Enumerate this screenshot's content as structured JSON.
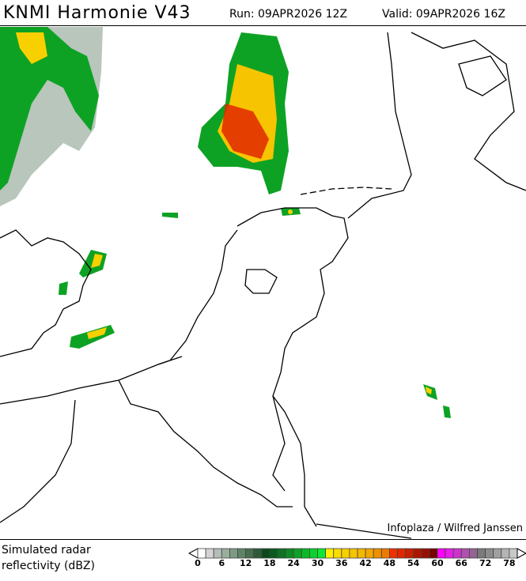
{
  "header": {
    "title": "KNMI Harmonie V43",
    "run": "Run: 09APR2026 12Z",
    "valid": "Valid: 09APR2026 16Z"
  },
  "map": {
    "credit": "Infoplaza / Wilfred Janssen"
  },
  "legend": {
    "label_line1": "Simulated radar",
    "label_line2": "reflectivity (dBZ)",
    "ticks": [
      "0",
      "6",
      "12",
      "18",
      "24",
      "30",
      "36",
      "42",
      "48",
      "54",
      "60",
      "66",
      "72",
      "78"
    ],
    "colors": [
      "#ffffff",
      "#d4d4d4",
      "#b4beb8",
      "#9aae9e",
      "#7e9a84",
      "#5e8466",
      "#466e50",
      "#2e5a3a",
      "#0a4a1a",
      "#0a5a1e",
      "#0c7222",
      "#0e8a22",
      "#0ea224",
      "#0cba28",
      "#0ad22c",
      "#0ae834",
      "#fff000",
      "#fadc00",
      "#f8d000",
      "#f6c400",
      "#f4b800",
      "#f2a800",
      "#f09000",
      "#ec7c00",
      "#f03000",
      "#e02800",
      "#c82000",
      "#b01400",
      "#961000",
      "#780000",
      "#ff00ff",
      "#e81ee8",
      "#cc33cc",
      "#b050b0",
      "#946494",
      "#7a7a7a",
      "#8c8c8c",
      "#a0a0a0",
      "#b4b4b4",
      "#c8c8c8"
    ]
  }
}
